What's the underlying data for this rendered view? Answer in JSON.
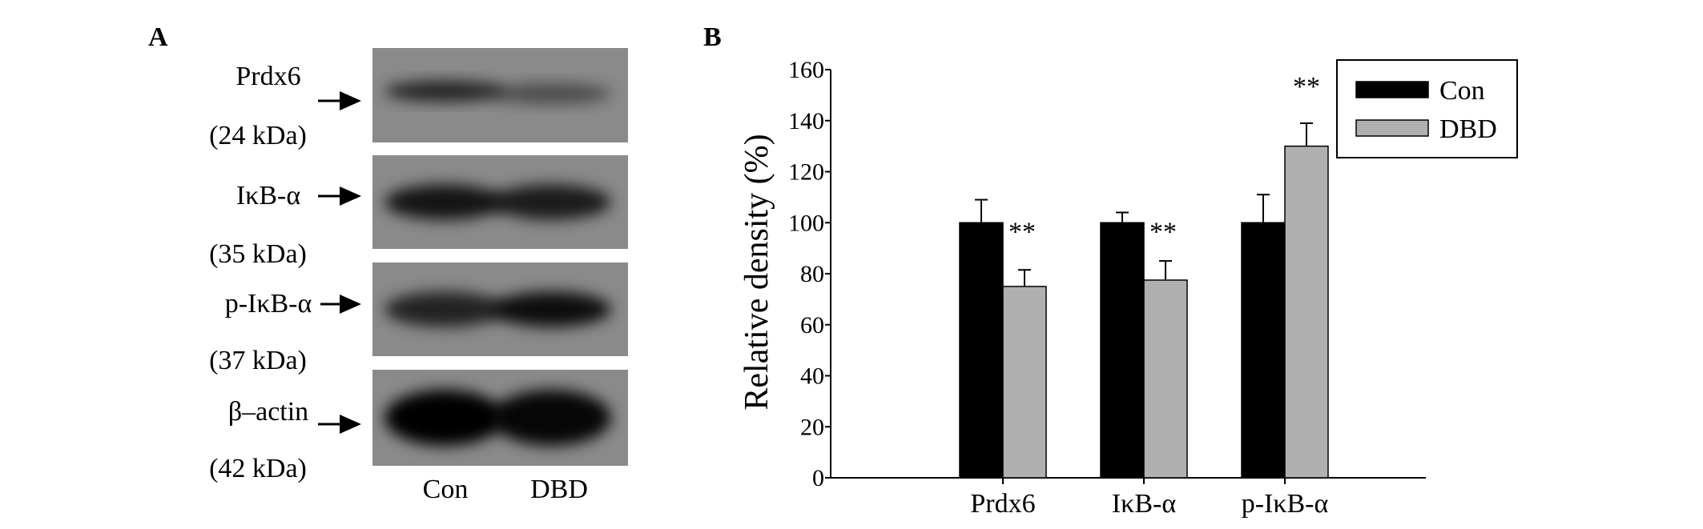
{
  "panel_a": {
    "label": "A",
    "blots": [
      {
        "protein": "Prdx6",
        "mw": "(24 kDa)",
        "con": 0.75,
        "dbd": 0.45
      },
      {
        "protein": "IκB-α",
        "mw": "(35 kDa)",
        "con": 0.85,
        "dbd": 0.8
      },
      {
        "protein": "p-IκB-α",
        "mw": "(37 kDa)",
        "con": 0.75,
        "dbd": 0.9
      },
      {
        "protein": "β–actin",
        "mw": "(42 kDa)",
        "con": 1.0,
        "dbd": 0.95
      }
    ],
    "lanes": [
      "Con",
      "DBD"
    ]
  },
  "chart_data": {
    "type": "bar",
    "panel_label": "B",
    "categories": [
      "Prdx6",
      "IκB-α",
      "p-IκB-α"
    ],
    "series": [
      {
        "name": "Con",
        "color": "#000000",
        "values": [
          100,
          100,
          100
        ],
        "errors": [
          9,
          4,
          11
        ]
      },
      {
        "name": "DBD",
        "color": "#b0b0b0",
        "values": [
          75,
          77.5,
          130
        ],
        "errors": [
          6.5,
          7.5,
          9
        ]
      }
    ],
    "annotations": [
      {
        "category": "Prdx6",
        "text": "**"
      },
      {
        "category": "IκB-α",
        "text": "**"
      },
      {
        "category": "p-IκB-α",
        "text": "**"
      }
    ],
    "ylabel": "Relative density (%)",
    "xlabel": "",
    "ylim": [
      0,
      160
    ],
    "yticks": [
      "0",
      "20",
      "40",
      "60",
      "80",
      "100",
      "120",
      "140",
      "160"
    ],
    "legend": "top-right",
    "grid": false
  }
}
